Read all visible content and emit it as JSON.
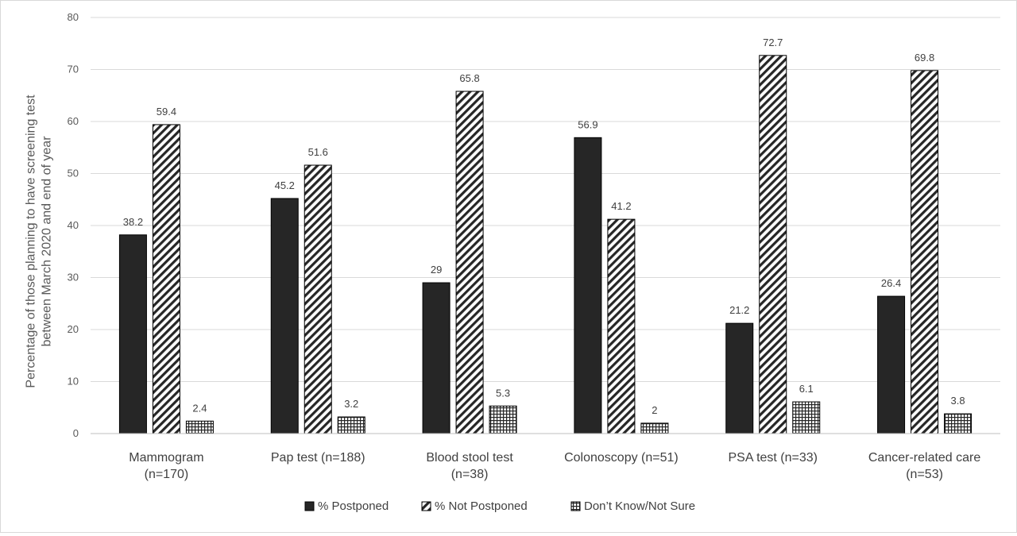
{
  "chart_data": {
    "type": "bar",
    "title": "",
    "xlabel": "",
    "ylabel": [
      "Percentage of those planning to have screening test",
      "between March 2020 and end of year"
    ],
    "ylim": [
      0,
      80
    ],
    "yticks": [
      0,
      10,
      20,
      30,
      40,
      50,
      60,
      70,
      80
    ],
    "grid": true,
    "legend_position": "bottom",
    "categories": [
      [
        "Mammogram",
        "(n=170)"
      ],
      [
        "Pap test (n=188)"
      ],
      [
        "Blood stool test",
        "(n=38)"
      ],
      [
        "Colonoscopy (n=51)"
      ],
      [
        "PSA test (n=33)"
      ],
      [
        "Cancer-related care",
        "(n=53)"
      ]
    ],
    "series": [
      {
        "name": "% Postponed",
        "values": [
          38.2,
          45.2,
          29,
          56.9,
          21.2,
          26.4
        ],
        "pattern": "solid",
        "color": "#262626"
      },
      {
        "name": "% Not Postponed",
        "values": [
          59.4,
          51.6,
          65.8,
          41.2,
          72.7,
          69.8
        ],
        "pattern": "diagonal",
        "color": "#262626"
      },
      {
        "name": "Don’t Know/Not Sure",
        "values": [
          2.4,
          3.2,
          5.3,
          2,
          6.1,
          3.8
        ],
        "pattern": "grid",
        "color": "#262626"
      }
    ],
    "data_labels": [
      [
        "38.2",
        "45.2",
        "29",
        "56.9",
        "21.2",
        "26.4"
      ],
      [
        "59.4",
        "51.6",
        "65.8",
        "41.2",
        "72.7",
        "69.8"
      ],
      [
        "2.4",
        "3.2",
        "5.3",
        "2",
        "6.1",
        "3.8"
      ]
    ]
  }
}
